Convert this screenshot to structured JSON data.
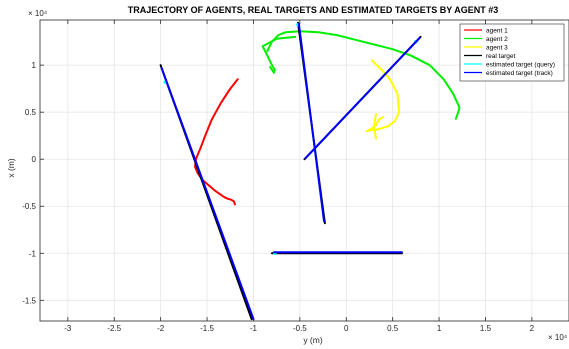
{
  "chart_data": {
    "type": "line",
    "title": "TRAJECTORY OF AGENTS, REAL TARGETS AND ESTIMATED TARGETS BY AGENT #3",
    "xlabel": "y (m)",
    "ylabel": "x (m)",
    "x_exponent_label": "× 10⁴",
    "y_exponent_label": "× 10⁴",
    "xlim": [
      -3.3,
      2.4
    ],
    "ylim": [
      -1.72,
      1.48
    ],
    "xticks": [
      -3,
      -2.5,
      -2,
      -1.5,
      -1,
      -0.5,
      0,
      0.5,
      1,
      1.5,
      2
    ],
    "yticks": [
      -1.5,
      -1,
      -0.5,
      0,
      0.5,
      1
    ],
    "grid": true,
    "legend_position": "top-right",
    "series": [
      {
        "name": "agent 1",
        "color": "#ff0000",
        "width": 2,
        "x": [
          -1.17,
          -1.25,
          -1.35,
          -1.45,
          -1.52,
          -1.57,
          -1.6,
          -1.62,
          -1.63,
          -1.6,
          -1.55,
          -1.42,
          -1.32,
          -1.28,
          -1.24,
          -1.21,
          -1.2
        ],
        "y": [
          0.85,
          0.75,
          0.6,
          0.42,
          0.25,
          0.12,
          0.05,
          0.0,
          -0.08,
          -0.15,
          -0.22,
          -0.33,
          -0.4,
          -0.42,
          -0.43,
          -0.45,
          -0.48
        ]
      },
      {
        "name": "agent 2",
        "color": "#00ee00",
        "width": 2,
        "x": [
          -0.85,
          -0.8,
          -0.73,
          -0.65,
          -0.5,
          -0.3,
          -0.1,
          0.1,
          0.3,
          0.5,
          0.7,
          0.9,
          1.05,
          1.15,
          1.22,
          1.2,
          1.18
        ],
        "y": [
          1.15,
          1.25,
          1.32,
          1.35,
          1.36,
          1.35,
          1.32,
          1.27,
          1.22,
          1.17,
          1.1,
          1.0,
          0.85,
          0.7,
          0.55,
          0.48,
          0.43
        ]
      },
      {
        "name": "agent 2 (loop)",
        "color": "#00ee00",
        "width": 2,
        "x": [
          -0.55,
          -0.75,
          -0.9,
          -0.85,
          -0.8,
          -0.77,
          -0.78,
          -0.82
        ],
        "y": [
          1.3,
          1.28,
          1.2,
          1.1,
          1.0,
          0.95,
          0.92,
          0.98
        ]
      },
      {
        "name": "agent 3",
        "color": "#ffff00",
        "width": 2,
        "x": [
          0.28,
          0.33,
          0.4,
          0.47,
          0.55,
          0.57,
          0.52,
          0.45,
          0.35,
          0.27,
          0.22,
          0.22,
          0.27,
          0.32,
          0.35,
          0.4
        ],
        "y": [
          1.05,
          1.0,
          0.93,
          0.85,
          0.7,
          0.5,
          0.4,
          0.35,
          0.32,
          0.31,
          0.3,
          0.3,
          0.32,
          0.36,
          0.42,
          0.45
        ]
      },
      {
        "name": "agent 3 (lower)",
        "color": "#ffff00",
        "width": 2,
        "x": [
          0.32,
          0.3,
          0.32
        ],
        "y": [
          0.48,
          0.35,
          0.22
        ]
      },
      {
        "name": "real target",
        "color": "#000000",
        "width": 2,
        "segments": [
          {
            "x": [
              -2.0,
              -1.02
            ],
            "y": [
              1.0,
              -1.7
            ]
          },
          {
            "x": [
              -0.52,
              -0.23
            ],
            "y": [
              1.45,
              -0.68
            ]
          },
          {
            "x": [
              -0.45,
              0.8
            ],
            "y": [
              0.0,
              1.3
            ]
          },
          {
            "x": [
              -0.8,
              0.6
            ],
            "y": [
              -1.0,
              -1.0
            ]
          }
        ]
      },
      {
        "name": "estimated target (query)",
        "color": "#00ffff",
        "width": 1,
        "points": [
          {
            "x": -1.95,
            "y": 0.82
          },
          {
            "x": -0.52,
            "y": 1.43
          },
          {
            "x": 0.75,
            "y": 1.25
          },
          {
            "x": -0.77,
            "y": -1.0
          }
        ]
      },
      {
        "name": "estimated target (track)",
        "color": "#0000ff",
        "width": 2,
        "segments": [
          {
            "x": [
              -1.99,
              -1.0
            ],
            "y": [
              0.97,
              -1.7
            ]
          },
          {
            "x": [
              -0.51,
              -0.24
            ],
            "y": [
              1.44,
              -0.66
            ]
          },
          {
            "x": [
              -0.44,
              0.79
            ],
            "y": [
              0.01,
              1.29
            ]
          },
          {
            "x": [
              -0.78,
              0.6
            ],
            "y": [
              -0.99,
              -0.99
            ]
          }
        ]
      }
    ]
  },
  "legend": [
    {
      "label": "agent 1",
      "color": "#ff0000"
    },
    {
      "label": "agent 2",
      "color": "#00ee00"
    },
    {
      "label": "agent 3",
      "color": "#ffff00"
    },
    {
      "label": "real target",
      "color": "#000000"
    },
    {
      "label": "estimated target (query)",
      "color": "#00ffff"
    },
    {
      "label": "estimated target (track)",
      "color": "#0000ff"
    }
  ]
}
